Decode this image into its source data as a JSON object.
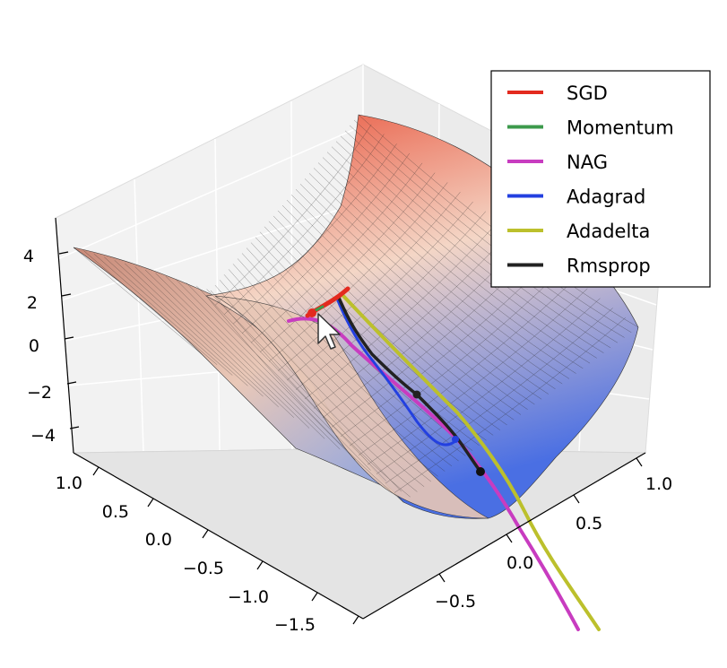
{
  "chart_data": {
    "type": "surface",
    "function": "z = x^2 - y^2",
    "z_ticks": [
      "4",
      "2",
      "0",
      "−2",
      "−4"
    ],
    "x_ticks": [
      "1.0",
      "0.5",
      "0.0",
      "−0.5",
      "−1.0",
      "−1.5"
    ],
    "y_ticks": [
      "1.0",
      "0.5",
      "0.0",
      "−0.5"
    ],
    "legend_position": "top-right",
    "grid": true,
    "colormap": [
      "#4a6fe3",
      "#f4d6c6",
      "#e8543c"
    ],
    "series": [
      {
        "name": "SGD",
        "color": "#e32a1f"
      },
      {
        "name": "Momentum",
        "color": "#3c9a4c"
      },
      {
        "name": "NAG",
        "color": "#c83cc0"
      },
      {
        "name": "Adagrad",
        "color": "#2340e0"
      },
      {
        "name": "Adadelta",
        "color": "#bcc02c"
      },
      {
        "name": "Rmsprop",
        "color": "#222222"
      }
    ]
  }
}
